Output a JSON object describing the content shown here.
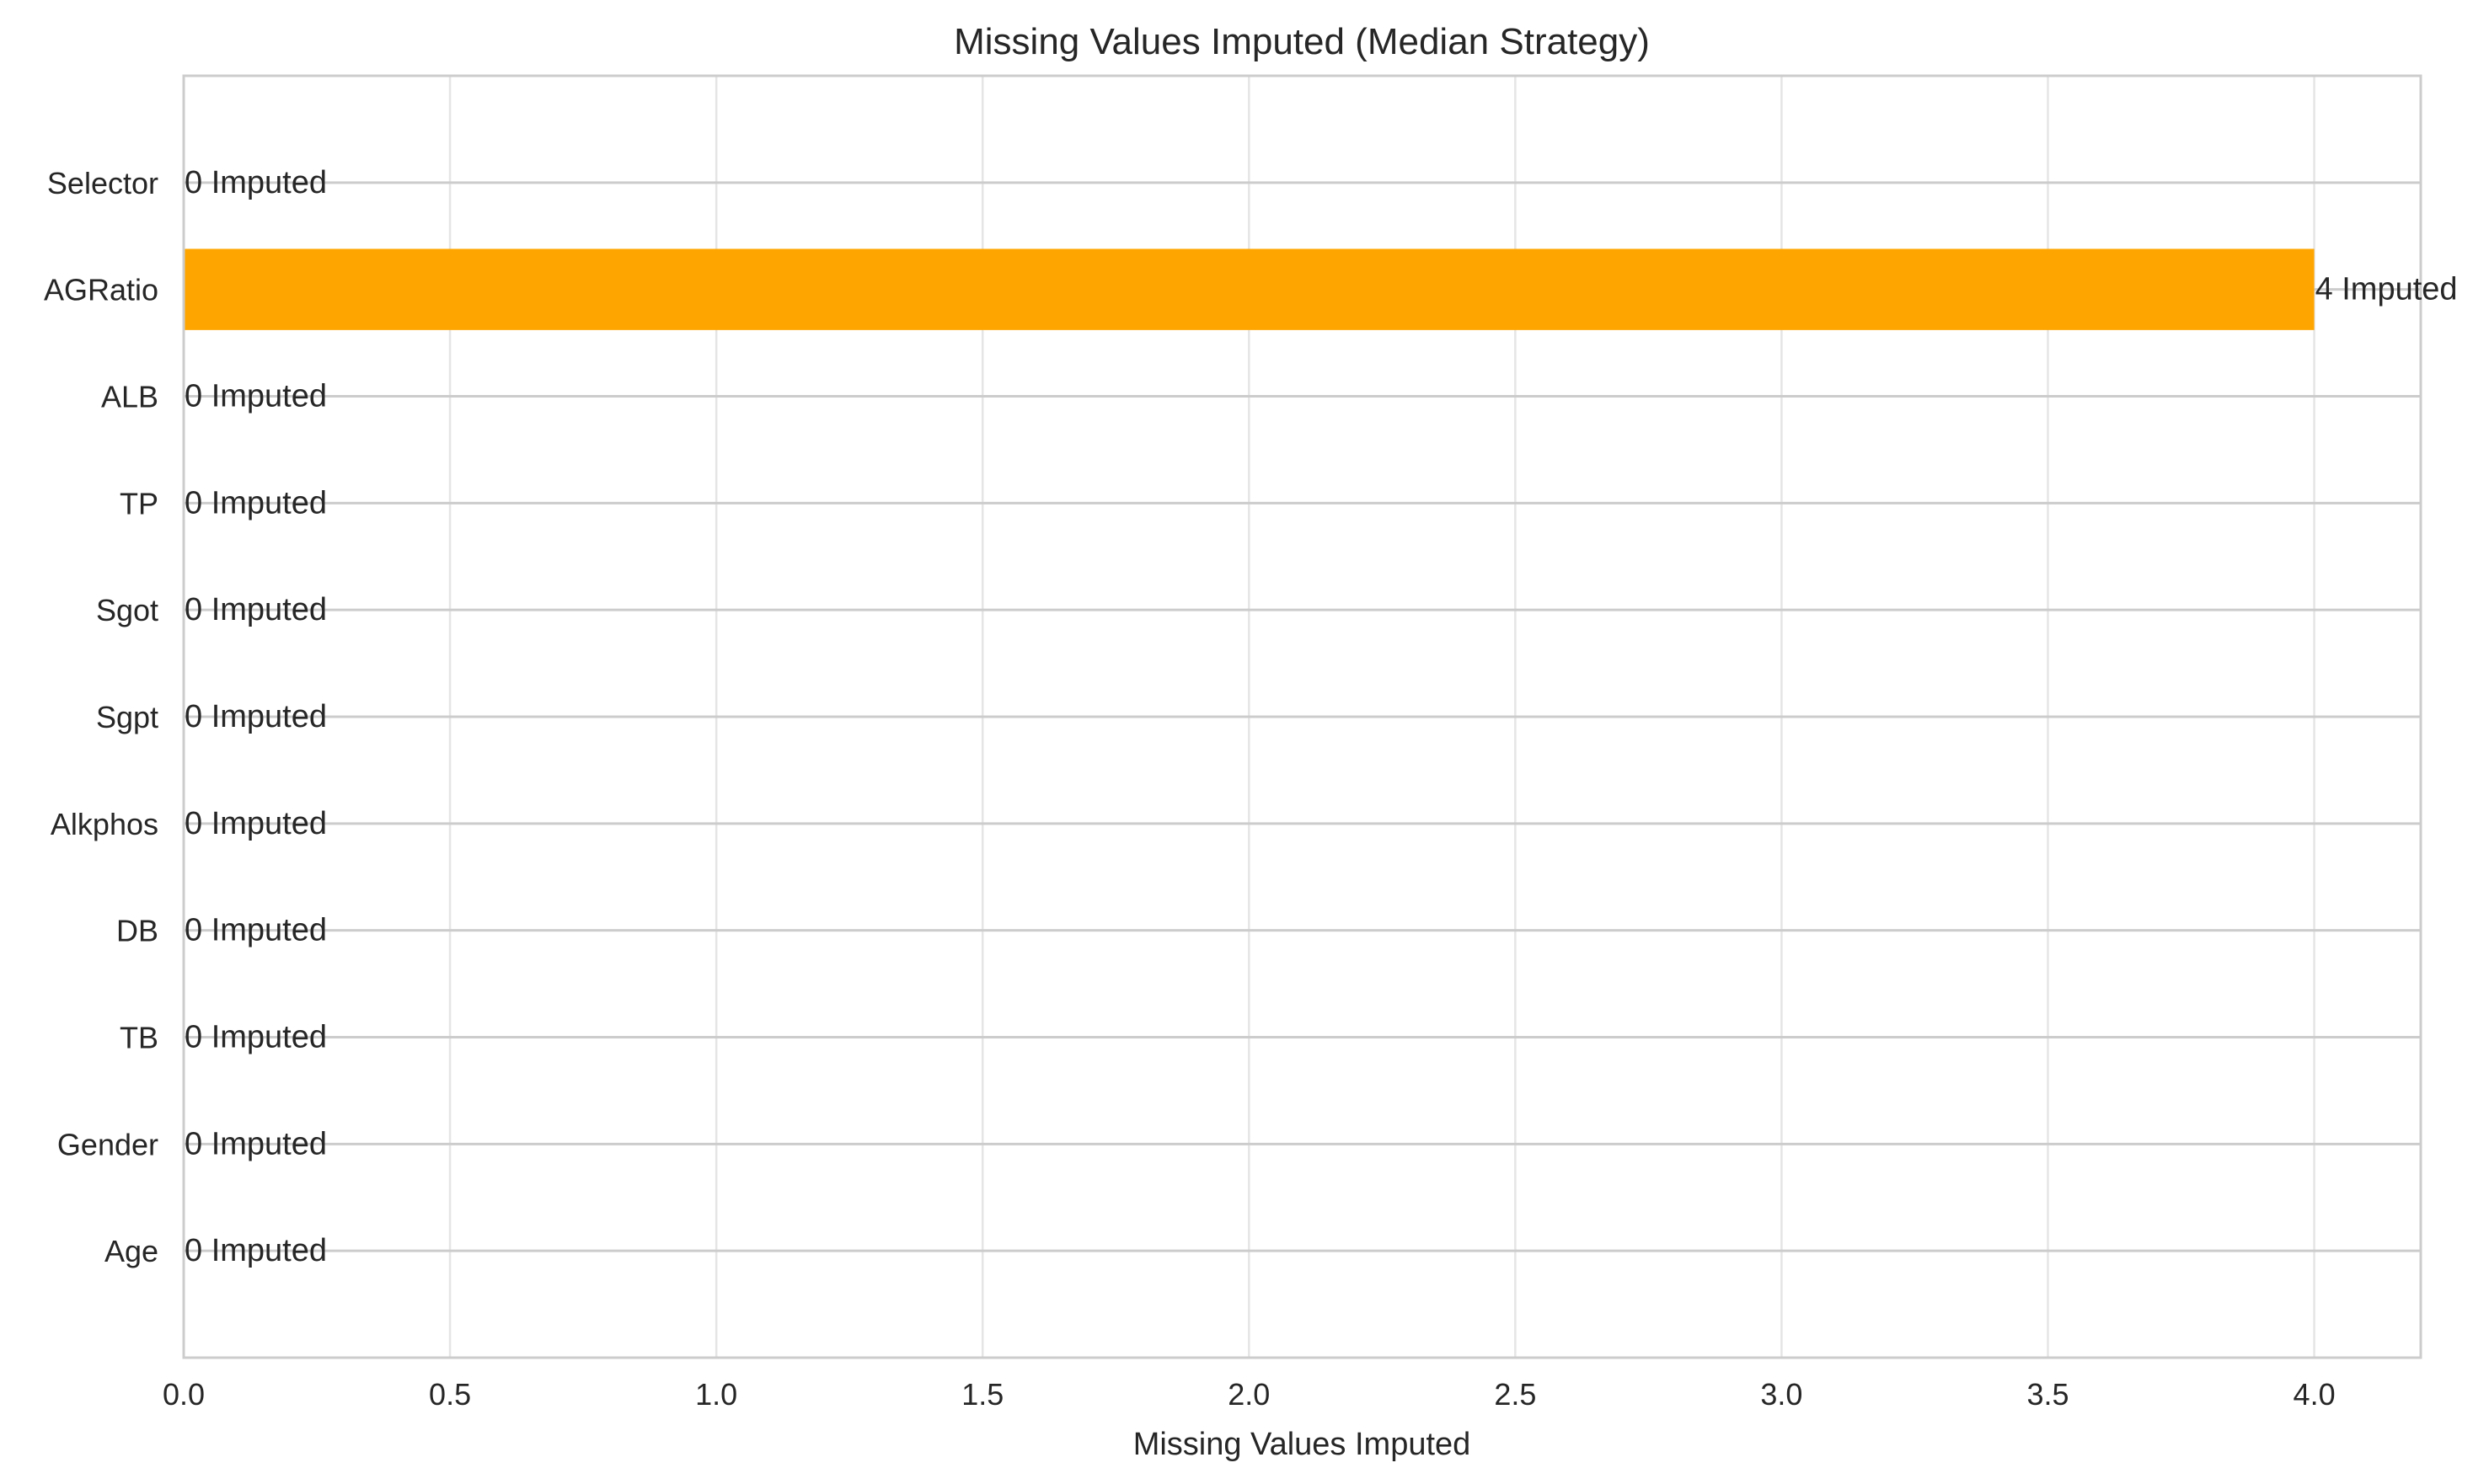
{
  "chart_data": {
    "type": "bar",
    "orientation": "horizontal",
    "title": "Missing Values Imputed (Median Strategy)",
    "xlabel": "Missing Values Imputed",
    "ylabel": "",
    "categories": [
      "Age",
      "Gender",
      "TB",
      "DB",
      "Alkphos",
      "Sgpt",
      "Sgot",
      "TP",
      "ALB",
      "AGRatio",
      "Selector"
    ],
    "values": [
      0,
      0,
      0,
      0,
      0,
      0,
      0,
      0,
      0,
      4,
      0
    ],
    "data_labels": [
      "0 Imputed",
      "0 Imputed",
      "0 Imputed",
      "0 Imputed",
      "0 Imputed",
      "0 Imputed",
      "0 Imputed",
      "0 Imputed",
      "0 Imputed",
      "4 Imputed",
      "0 Imputed"
    ],
    "xlim": [
      0,
      4.2
    ],
    "xticks": [
      0.0,
      0.5,
      1.0,
      1.5,
      2.0,
      2.5,
      3.0,
      3.5,
      4.0
    ],
    "xtick_labels": [
      "0.0",
      "0.5",
      "1.0",
      "1.5",
      "2.0",
      "2.5",
      "3.0",
      "3.5",
      "4.0"
    ],
    "grid": true,
    "bar_color": "#ffa500",
    "grid_color": "#e5e5e5",
    "category_line_color": "#cccccc",
    "frame_color": "#cccccc"
  }
}
